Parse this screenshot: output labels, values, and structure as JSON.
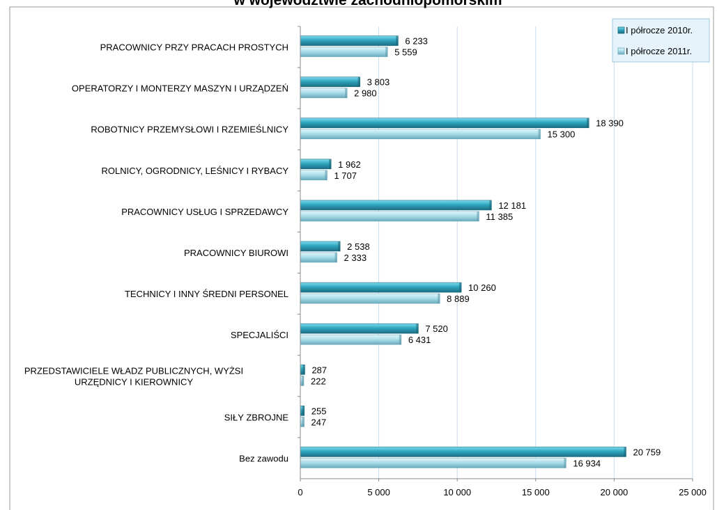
{
  "chart_data": {
    "type": "bar",
    "orientation": "horizontal",
    "title": "w województwie zachodniopomorskim",
    "categories": [
      "PRACOWNICY PRZY PRACACH PROSTYCH",
      "OPERATORZY I MONTERZY MASZYN I URZĄDZEŃ",
      "ROBOTNICY PRZEMYSŁOWI I RZEMIEŚLNICY",
      "ROLNICY, OGRODNICY, LEŚNICY I RYBACY",
      "PRACOWNICY USŁUG I SPRZEDAWCY",
      "PRACOWNICY BIUROWI",
      "TECHNICY I INNY ŚREDNI PERSONEL",
      "SPECJALIŚCI",
      "PRZEDSTAWICIELE WŁADZ PUBLICZNYCH, WYŻSI URZĘDNICY I KIEROWNICY",
      "SIŁY ZBROJNE",
      "Bez zawodu"
    ],
    "category_lines": [
      [
        "PRACOWNICY PRZY PRACACH PROSTYCH"
      ],
      [
        "OPERATORZY I MONTERZY MASZYN I URZĄDZEŃ"
      ],
      [
        "ROBOTNICY PRZEMYSŁOWI I RZEMIEŚLNICY"
      ],
      [
        "ROLNICY, OGRODNICY, LEŚNICY I RYBACY"
      ],
      [
        "PRACOWNICY USŁUG I SPRZEDAWCY"
      ],
      [
        "PRACOWNICY BIUROWI"
      ],
      [
        "TECHNICY I INNY ŚREDNI PERSONEL"
      ],
      [
        "SPECJALIŚCI"
      ],
      [
        "PRZEDSTAWICIELE WŁADZ PUBLICZNYCH, WYŻSI",
        "URZĘDNICY I KIEROWNICY"
      ],
      [
        "SIŁY ZBROJNE"
      ],
      [
        "Bez zawodu"
      ]
    ],
    "series": [
      {
        "name": "I półrocze 2010r.",
        "values": [
          6233,
          3803,
          18390,
          1962,
          12181,
          2538,
          10260,
          7520,
          287,
          255,
          20759
        ],
        "labels": [
          "6 233",
          "3 803",
          "18 390",
          "1 962",
          "12 181",
          "2 538",
          "10 260",
          "7 520",
          "287",
          "255",
          "20 759"
        ]
      },
      {
        "name": "I półrocze 2011r.",
        "values": [
          5559,
          2980,
          15300,
          1707,
          11385,
          2333,
          8889,
          6431,
          222,
          247,
          16934
        ],
        "labels": [
          "5 559",
          "2 980",
          "15 300",
          "1 707",
          "11 385",
          "2 333",
          "8 889",
          "6 431",
          "222",
          "247",
          "16 934"
        ]
      }
    ],
    "xlim": [
      0,
      25000
    ],
    "xticks": [
      0,
      5000,
      10000,
      15000,
      20000,
      25000
    ],
    "xtick_labels": [
      "0",
      "5 000",
      "10 000",
      "15 000",
      "20 000",
      "25 000"
    ],
    "grid": "vertical",
    "legend": "top-right",
    "colors": {
      "series_2010": "#2e9fb7",
      "series_2011": "#8fd3e3",
      "grid": "#c9dceb",
      "legend_bg": "#e6f3fa",
      "legend_border": "#9fc8dc"
    }
  }
}
